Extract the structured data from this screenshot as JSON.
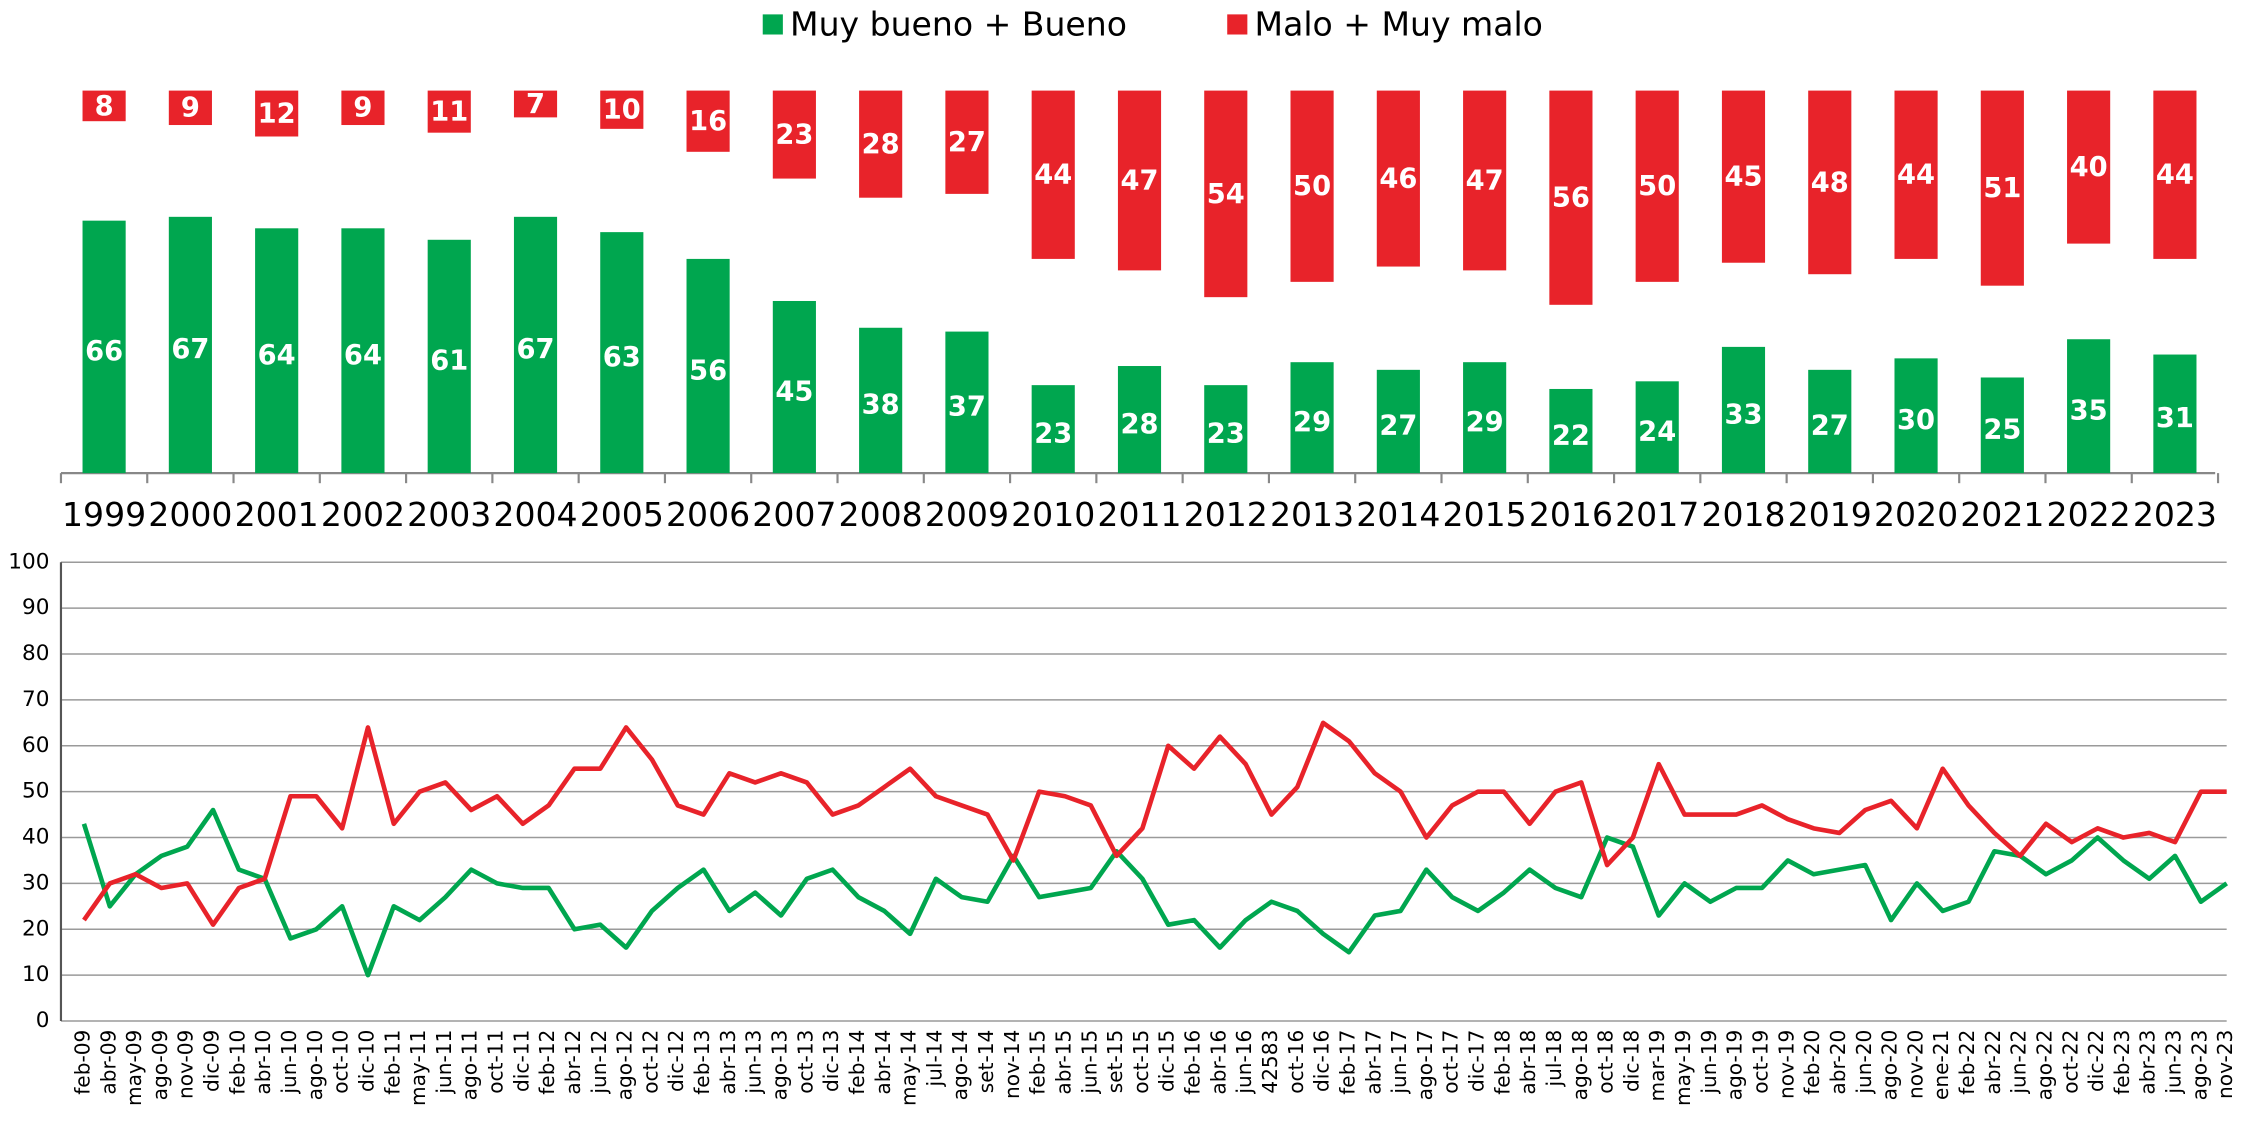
{
  "chart_data": [
    {
      "type": "bar",
      "categories": [
        "1999",
        "2000",
        "2001",
        "2002",
        "2003",
        "2004",
        "2005",
        "2006",
        "2007",
        "2008",
        "2009",
        "2010",
        "2011",
        "2012",
        "2013",
        "2014",
        "2015",
        "2016",
        "2017",
        "2018",
        "2019",
        "2020",
        "2021",
        "2022",
        "2023"
      ],
      "series": [
        {
          "name": "Muy bueno + Bueno",
          "color": "#00a64f",
          "values": [
            66,
            67,
            64,
            64,
            61,
            67,
            63,
            56,
            45,
            38,
            37,
            23,
            28,
            23,
            29,
            27,
            29,
            22,
            24,
            33,
            27,
            30,
            25,
            35,
            31
          ]
        },
        {
          "name": "Malo + Muy malo",
          "color": "#e8232a",
          "values": [
            8,
            9,
            12,
            9,
            11,
            7,
            10,
            16,
            23,
            28,
            27,
            44,
            47,
            54,
            50,
            46,
            47,
            56,
            50,
            45,
            48,
            44,
            51,
            40,
            44
          ]
        }
      ]
    },
    {
      "type": "line",
      "categories": [
        "feb-09",
        "abr-09",
        "may-09",
        "ago-09",
        "nov-09",
        "dic-09",
        "feb-10",
        "abr-10",
        "jun-10",
        "ago-10",
        "oct-10",
        "dic-10",
        "feb-11",
        "may-11",
        "jun-11",
        "ago-11",
        "oct-11",
        "dic-11",
        "feb-12",
        "abr-12",
        "jun-12",
        "ago-12",
        "oct-12",
        "dic-12",
        "feb-13",
        "abr-13",
        "jun-13",
        "ago-13",
        "oct-13",
        "dic-13",
        "feb-14",
        "abr-14",
        "may-14",
        "jul-14",
        "ago-14",
        "set-14",
        "nov-14",
        "feb-15",
        "abr-15",
        "jun-15",
        "set-15",
        "oct-15",
        "dic-15",
        "feb-16",
        "abr-16",
        "jun-16",
        "42583",
        "oct-16",
        "dic-16",
        "feb-17",
        "abr-17",
        "jun-17",
        "ago-17",
        "oct-17",
        "dic-17",
        "feb-18",
        "abr-18",
        "jul-18",
        "ago-18",
        "oct-18",
        "dic-18",
        "mar-19",
        "may-19",
        "jun-19",
        "ago-19",
        "oct-19",
        "nov-19",
        "feb-20",
        "abr-20",
        "jun-20",
        "ago-20",
        "nov-20",
        "ene-21",
        "feb-22",
        "abr-22",
        "jun-22",
        "ago-22",
        "oct-22",
        "dic-22",
        "feb-23",
        "abr-23",
        "jun-23",
        "ago-23",
        "nov-23"
      ],
      "series": [
        {
          "color": "#00a64f",
          "values": [
            43,
            25,
            32,
            36,
            38,
            46,
            33,
            31,
            18,
            20,
            25,
            10,
            25,
            22,
            27,
            33,
            30,
            29,
            29,
            20,
            21,
            16,
            24,
            29,
            33,
            24,
            28,
            23,
            31,
            33,
            27,
            24,
            19,
            31,
            27,
            26,
            36,
            27,
            28,
            29,
            37,
            31,
            21,
            22,
            16,
            22,
            26,
            24,
            19,
            15,
            23,
            24,
            33,
            27,
            24,
            28,
            33,
            29,
            27,
            40,
            38,
            23,
            30,
            26,
            29,
            29,
            35,
            32,
            33,
            34,
            22,
            30,
            24,
            26,
            37,
            36,
            32,
            35,
            40,
            35,
            31,
            36,
            26,
            30
          ]
        },
        {
          "color": "#e8232a",
          "values": [
            22,
            30,
            32,
            29,
            30,
            21,
            29,
            31,
            49,
            49,
            42,
            64,
            43,
            50,
            52,
            46,
            49,
            43,
            47,
            55,
            55,
            64,
            57,
            47,
            45,
            54,
            52,
            54,
            52,
            45,
            47,
            51,
            55,
            49,
            47,
            45,
            35,
            50,
            49,
            47,
            36,
            42,
            60,
            55,
            62,
            56,
            45,
            51,
            65,
            61,
            54,
            50,
            40,
            47,
            50,
            50,
            43,
            50,
            52,
            34,
            40,
            56,
            45,
            45,
            45,
            47,
            44,
            42,
            41,
            46,
            48,
            42,
            55,
            47,
            41,
            36,
            43,
            39,
            42,
            40,
            41,
            39,
            50,
            50
          ]
        }
      ],
      "ylim": [
        0,
        100
      ],
      "yticks": [
        0,
        10,
        20,
        30,
        40,
        50,
        60,
        70,
        80,
        90,
        100
      ],
      "grid": true
    }
  ]
}
